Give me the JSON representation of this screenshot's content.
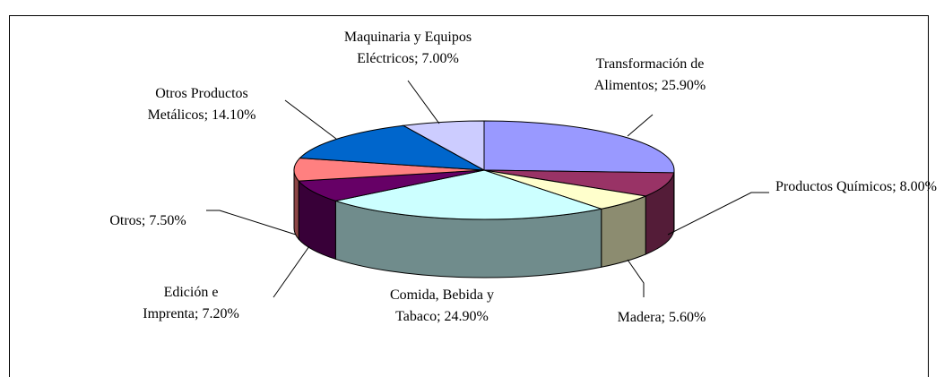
{
  "chart_data": {
    "type": "pie3d",
    "categories": [
      "Transformación de Alimentos;",
      "Productos Químicos;",
      "Madera;",
      "Comida, Bebida y Tabaco;",
      "Edición e Imprenta;",
      "Otros;",
      "Otros Productos Metálicos;",
      "Maquinaria y Equipos Eléctricos;"
    ],
    "values": [
      25.9,
      8.0,
      5.6,
      24.9,
      7.2,
      7.5,
      14.1,
      7.0
    ],
    "value_labels": [
      "25.90%",
      "8.00%",
      "5.60%",
      "24.90%",
      "7.20%",
      "7.50%",
      "14.10%",
      "7.00%"
    ],
    "colors": [
      "#9999ff",
      "#993366",
      "#ffffcc",
      "#ccffff",
      "#660066",
      "#ff8080",
      "#0066cc",
      "#ccccff"
    ]
  }
}
